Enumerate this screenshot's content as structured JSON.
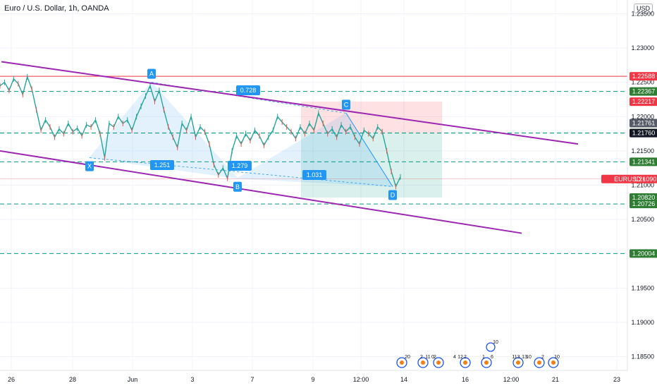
{
  "header": {
    "title": "Euro / U.S. Dollar, 1h, OANDA",
    "currency": "USD"
  },
  "chart_data": {
    "type": "line",
    "symbol": "EURUSD",
    "interval": "1h",
    "x_ticks": [
      "26",
      "28",
      "Jun",
      "3",
      "7",
      "9",
      "12:00",
      "14",
      "16",
      "12:00",
      "21",
      "23"
    ],
    "y_ticks": [
      "1.23500",
      "1.23000",
      "1.22500",
      "1.22000",
      "1.21500",
      "1.21000",
      "1.20500",
      "1.20000",
      "1.19500",
      "1.19000",
      "1.18500"
    ],
    "ylim": [
      1.183,
      1.237
    ],
    "price_series": [
      1.2245,
      1.225,
      1.2238,
      1.2255,
      1.2248,
      1.2232,
      1.2258,
      1.224,
      1.221,
      1.218,
      1.2195,
      1.2185,
      1.217,
      1.2182,
      1.2175,
      1.219,
      1.2178,
      1.2183,
      1.2172,
      1.2188,
      1.2185,
      1.2195,
      1.2175,
      1.214,
      1.219,
      1.2185,
      1.22,
      1.219,
      1.2195,
      1.218,
      1.22,
      1.2215,
      1.223,
      1.2245,
      1.2222,
      1.2238,
      1.221,
      1.2185,
      1.217,
      1.2155,
      1.219,
      1.218,
      1.22,
      1.217,
      1.2185,
      1.2178,
      1.216,
      1.213,
      1.2115,
      1.2125,
      1.211,
      1.215,
      1.2172,
      1.216,
      1.2175,
      1.2165,
      1.218,
      1.2172,
      1.2158,
      1.217,
      1.218,
      1.22,
      1.2192,
      1.2185,
      1.2178,
      1.2168,
      1.2185,
      1.2175,
      1.219,
      1.218,
      1.2205,
      1.219,
      1.2175,
      1.2182,
      1.217,
      1.2188,
      1.2178,
      1.2185,
      1.217,
      1.216,
      1.218,
      1.2175,
      1.2168,
      1.2185,
      1.2178,
      1.215,
      1.212,
      1.2098,
      1.2112
    ],
    "horizontal_levels": [
      {
        "price": 1.22588,
        "label": "1.22588",
        "style": "solid",
        "color": "#f23645",
        "bg": "#f23645"
      },
      {
        "price": 1.22367,
        "label": "1.22367",
        "style": "dashed",
        "color": "#089981",
        "bg": "#2e7d32"
      },
      {
        "price": 1.22217,
        "label": "1.22217",
        "style": "none",
        "color": "#f23645",
        "bg": "#f23645"
      },
      {
        "price": 1.21761,
        "label": "1.21761",
        "style": "dashed",
        "color": "#089981",
        "bg": "#4caf50"
      },
      {
        "price": 1.2176,
        "label": "1.21760",
        "style": "dashed",
        "color": "#089981",
        "bg": "#131722"
      },
      {
        "price": 1.21341,
        "label": "1.21341",
        "style": "dashed",
        "color": "#089981",
        "bg": "#2e7d32"
      },
      {
        "price": 1.2082,
        "label": "1.20820",
        "style": "none",
        "color": "#089981",
        "bg": "#2e7d32"
      },
      {
        "price": 1.20726,
        "label": "1.20726",
        "style": "dashed",
        "color": "#089981",
        "bg": "#2e7d32"
      },
      {
        "price": 1.20004,
        "label": "1.20004",
        "style": "dashed",
        "color": "#089981",
        "bg": "#2e7d32"
      }
    ],
    "top_label_extra": {
      "price": 1.21761,
      "label": "1.21761",
      "bg": "#555a66"
    },
    "current_price": {
      "symbol": "EURUSD",
      "price": "1.21090",
      "color": "#f23645"
    },
    "harmonic_pattern": {
      "points": [
        {
          "name": "X",
          "price": 1.214
        },
        {
          "name": "A",
          "price": 1.225
        },
        {
          "name": "B",
          "price": 1.211
        },
        {
          "name": "C",
          "price": 1.2205
        },
        {
          "name": "D",
          "price": 1.2098
        }
      ],
      "ratios": [
        "0.728",
        "1.251",
        "1.279",
        "1.031"
      ]
    },
    "channel": {
      "upper": [
        1.228,
        1.216
      ],
      "lower": [
        1.215,
        1.203
      ]
    },
    "position_tool": {
      "entry": 1.2176,
      "stop": 1.2222,
      "target": 1.2082
    },
    "accent_colors": {
      "pattern": "#2196f3",
      "channel": "#9c27b0",
      "profit": "#089981",
      "loss": "#f23645"
    },
    "event_markers": [
      "20",
      "2",
      "11",
      "0",
      "2",
      "4",
      "12",
      "2",
      "1",
      "6",
      "10",
      "113",
      "13",
      "10",
      "2",
      "10"
    ]
  }
}
